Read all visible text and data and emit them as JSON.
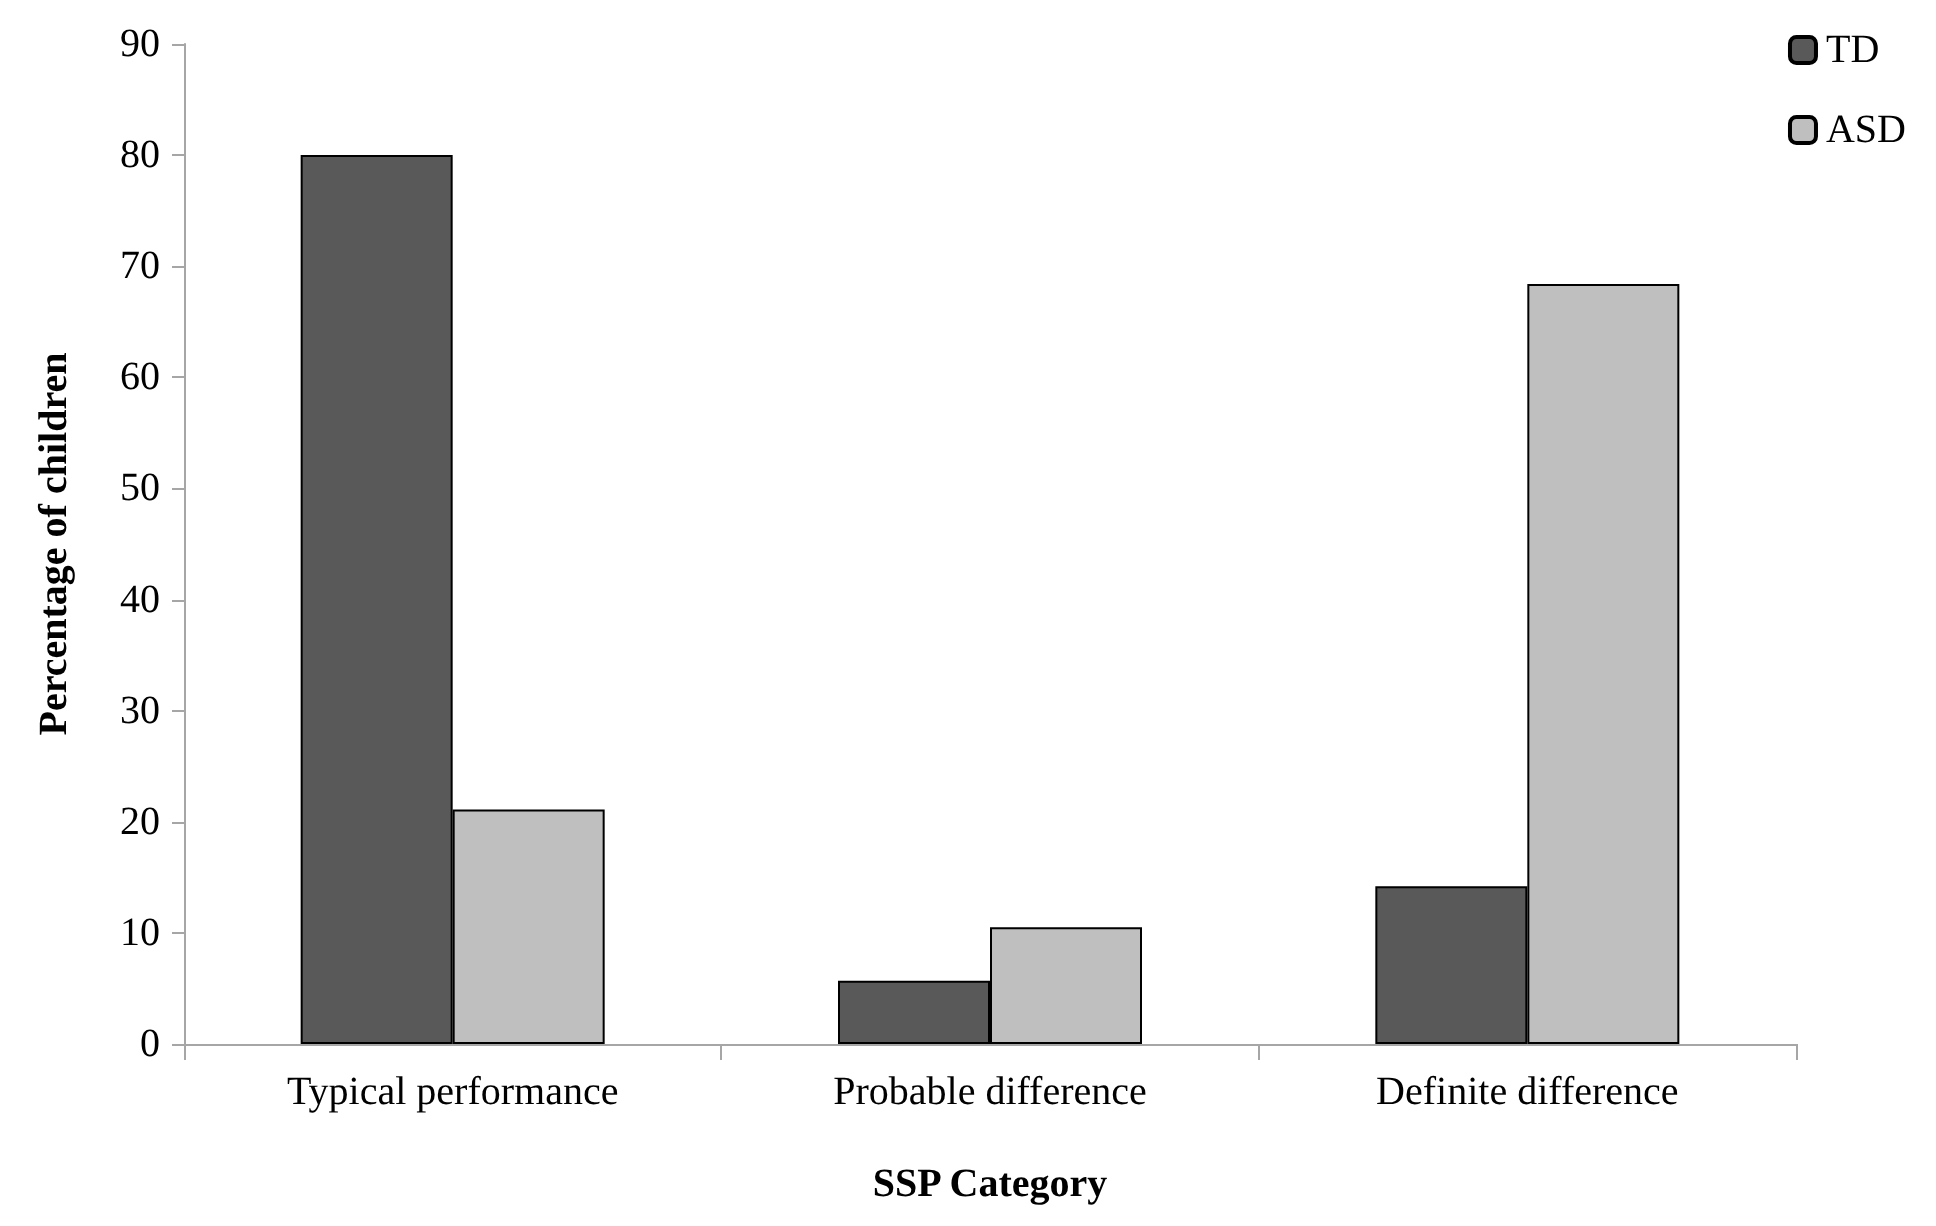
{
  "chart_data": {
    "type": "bar",
    "xlabel": "SSP Category",
    "ylabel": "Percentage of children",
    "categories": [
      "Typical performance",
      "Probable difference",
      "Definite difference"
    ],
    "series": [
      {
        "name": "TD",
        "color": "#595959",
        "values": [
          80,
          5.7,
          14.2
        ]
      },
      {
        "name": "ASD",
        "color": "#bfbfbf",
        "values": [
          21.1,
          10.5,
          68.4
        ]
      }
    ],
    "ylim": [
      0,
      90
    ],
    "yticks": [
      0,
      10,
      20,
      30,
      40,
      50,
      60,
      70,
      80,
      90
    ],
    "grid": false,
    "legend": "top right"
  }
}
